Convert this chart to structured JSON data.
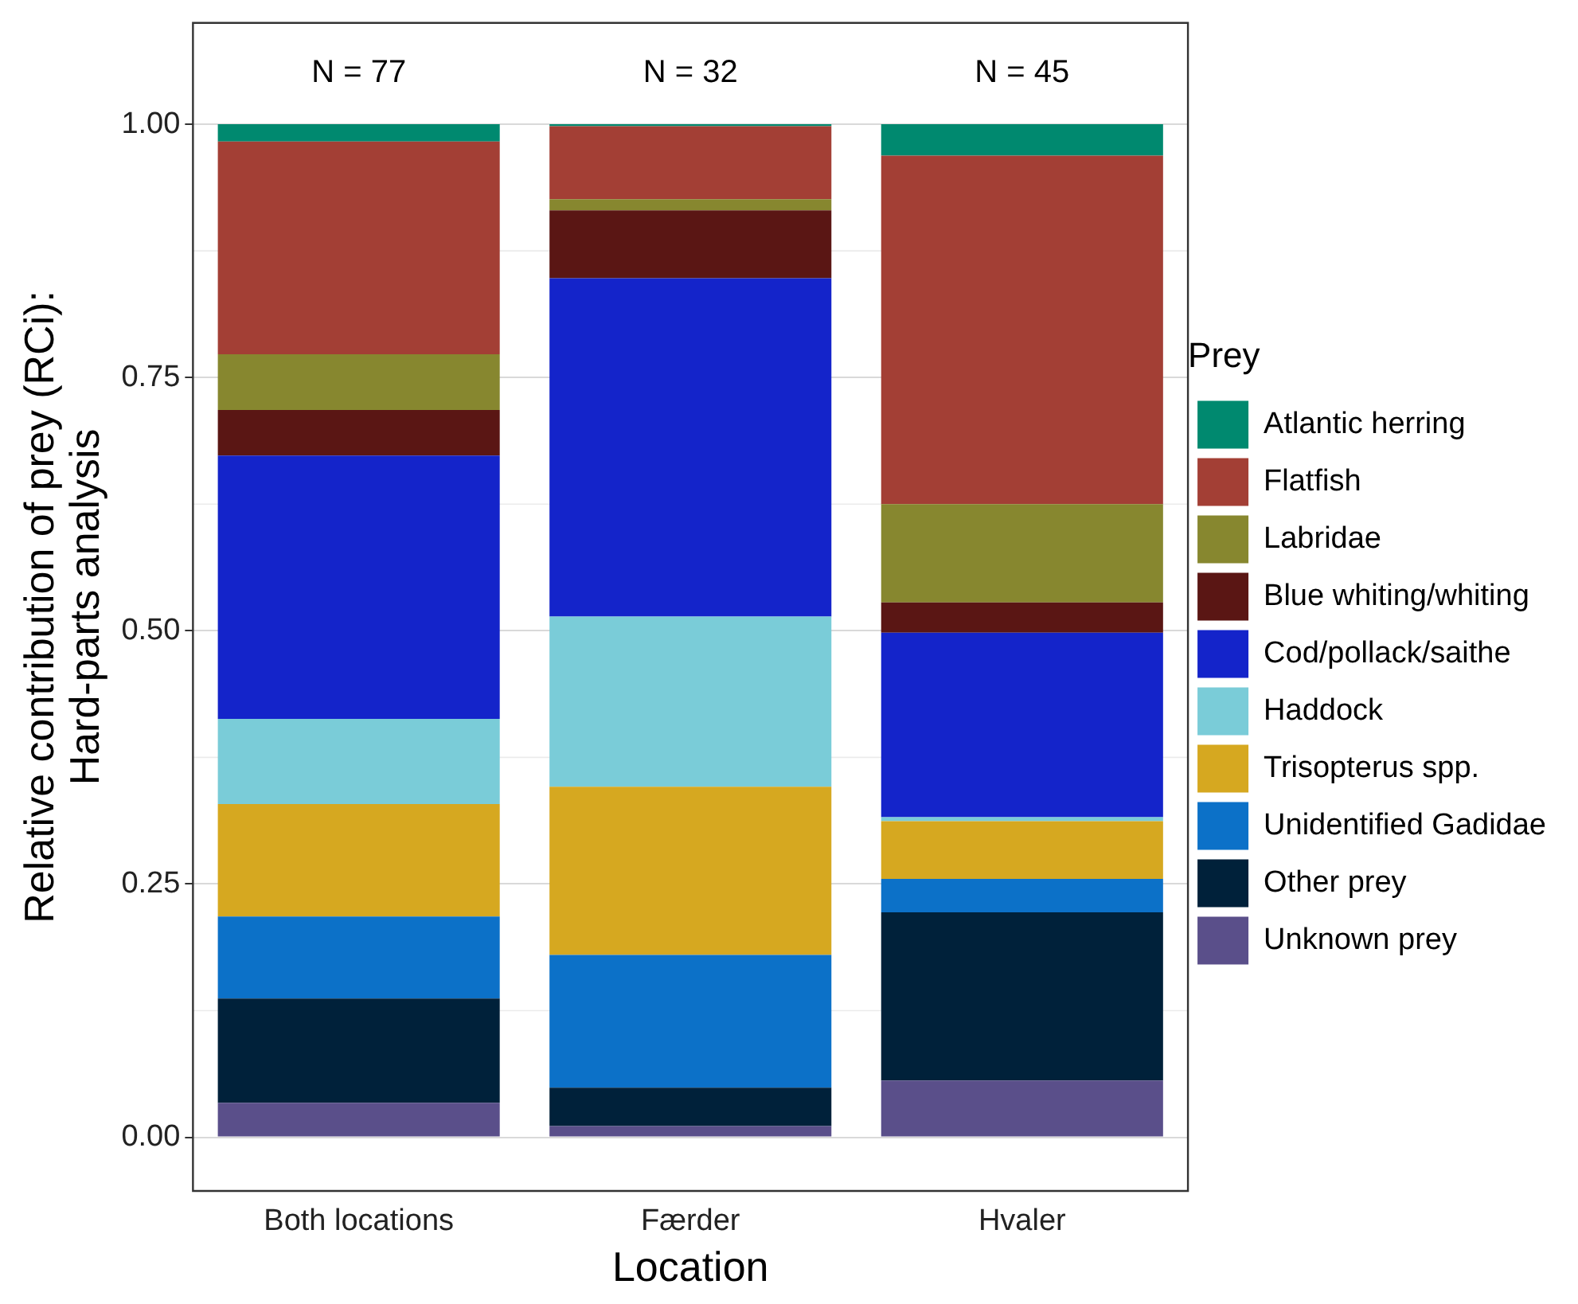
{
  "chart_data": {
    "type": "bar",
    "stacked": true,
    "xlabel": "Location",
    "ylabel": "Relative contribution of prey (RCi):\nHard-parts analysis",
    "legend_title": "Prey",
    "legend": "right",
    "grid": "y",
    "categories": [
      "Both locations",
      "Færder",
      "Hvaler"
    ],
    "ylim": [
      -0.053,
      1.1
    ],
    "yticks": [
      {
        "value": 0,
        "label": "0.00"
      },
      0.25,
      {
        "value": 0.5,
        "label": "0.50"
      },
      0.75,
      {
        "value": 1,
        "label": "1.00"
      }
    ],
    "series": [
      {
        "name": "Unknown prey",
        "color": "#5a4f8a",
        "values": [
          0.034,
          0.011,
          0.056
        ]
      },
      {
        "name": "Other prey",
        "color": "#00213a",
        "values": [
          0.103,
          0.038,
          0.166
        ]
      },
      {
        "name": "Unidentified Gadidae",
        "color": "#0c71c8",
        "values": [
          0.081,
          0.131,
          0.033
        ]
      },
      {
        "name": "Trisopterus spp.",
        "color": "#d6a820",
        "values": [
          0.111,
          0.166,
          0.057
        ]
      },
      {
        "name": "Haddock",
        "color": "#7accd8",
        "values": [
          0.084,
          0.168,
          0.004
        ]
      },
      {
        "name": "Cod/pollack/saithe",
        "color": "#1424ca",
        "values": [
          0.26,
          0.334,
          0.182
        ]
      },
      {
        "name": "Blue whiting/whiting",
        "color": "#5a1614",
        "values": [
          0.045,
          0.067,
          0.03
        ]
      },
      {
        "name": "Labridae",
        "color": "#87872f",
        "values": [
          0.055,
          0.011,
          0.097
        ]
      },
      {
        "name": "Flatfish",
        "color": "#a33f35",
        "values": [
          0.21,
          0.072,
          0.344
        ]
      },
      {
        "name": "Atlantic herring",
        "color": "#00896f",
        "values": [
          0.017,
          0.002,
          0.031
        ]
      }
    ],
    "annotations": [
      "N = 77",
      "N = 32",
      "N = 45"
    ]
  }
}
